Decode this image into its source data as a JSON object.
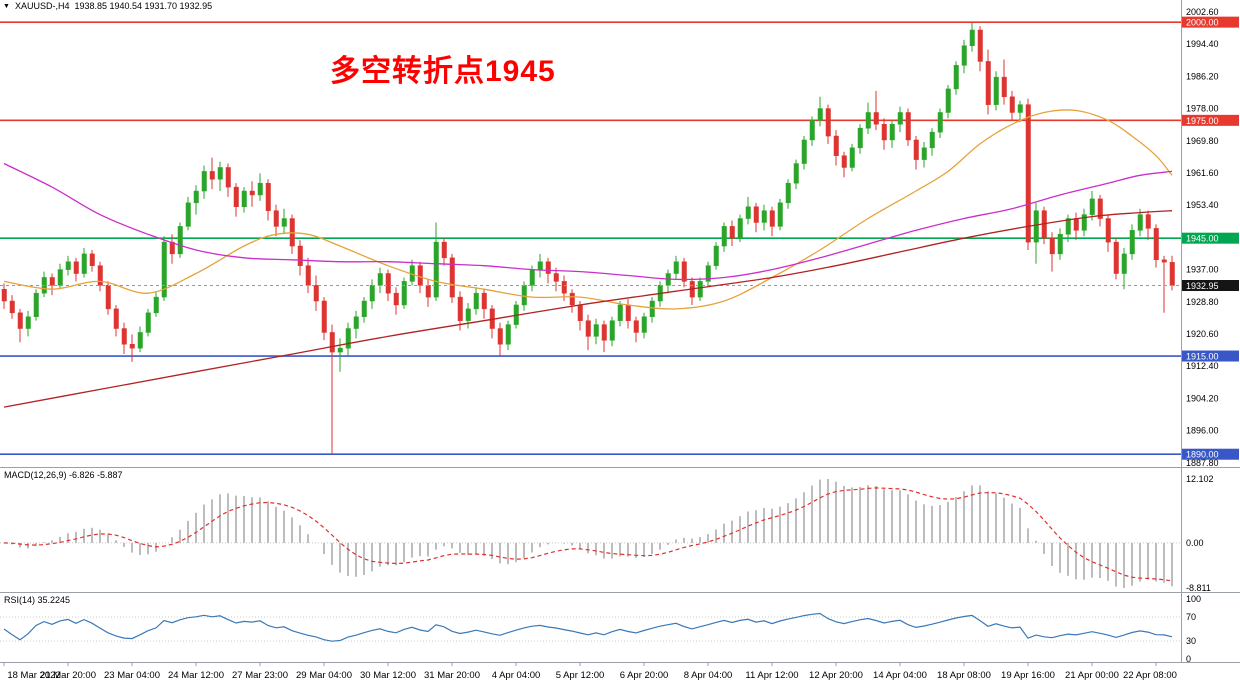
{
  "header": {
    "symbol_dropdown_icon": "▼",
    "symbol_period": "XAUUSD-,H4",
    "ohlc_text": "1938.85 1940.54 1931.70 1932.95",
    "open": 1938.85,
    "high": 1940.54,
    "low": 1931.7,
    "close": 1932.95
  },
  "annotation": {
    "text": "多空转折点1945",
    "color": "#ff0000"
  },
  "chart_data": {
    "type": "candlestick",
    "symbol": "XAUUSD-",
    "timeframe": "H4",
    "colors": {
      "bull": "#2aa52a",
      "bear": "#dc3430"
    },
    "y_ticks": [
      "2002.60",
      "1994.40",
      "1986.20",
      "1978.00",
      "1969.80",
      "1961.60",
      "1953.40",
      "1937.00",
      "1928.80",
      "1920.60",
      "1912.40",
      "1904.20",
      "1896.00",
      "1887.80"
    ],
    "hlines": [
      {
        "price": 2000.0,
        "label": "2000.00",
        "color": "#e8392f"
      },
      {
        "price": 1975.0,
        "label": "1975.00",
        "color": "#e8392f"
      },
      {
        "price": 1945.0,
        "label": "1945.00",
        "color": "#00a651"
      },
      {
        "price": 1915.0,
        "label": "1915.00",
        "color": "#3a57c8"
      },
      {
        "price": 1890.0,
        "label": "1890.00",
        "color": "#3a57c8"
      }
    ],
    "current_price": {
      "value": 1932.95,
      "label": "1932.95",
      "bg": "#151515"
    },
    "x_labels": [
      {
        "bar": 0,
        "text": "18 Mar 2022"
      },
      {
        "bar": 8,
        "text": "21 Mar 20:00"
      },
      {
        "bar": 16,
        "text": "23 Mar 04:00"
      },
      {
        "bar": 24,
        "text": "24 Mar 12:00"
      },
      {
        "bar": 32,
        "text": "27 Mar 23:00"
      },
      {
        "bar": 40,
        "text": "29 Mar 04:00"
      },
      {
        "bar": 48,
        "text": "30 Mar 12:00"
      },
      {
        "bar": 56,
        "text": "31 Mar 20:00"
      },
      {
        "bar": 64,
        "text": "4 Apr 04:00"
      },
      {
        "bar": 72,
        "text": "5 Apr 12:00"
      },
      {
        "bar": 80,
        "text": "6 Apr 20:00"
      },
      {
        "bar": 88,
        "text": "8 Apr 04:00"
      },
      {
        "bar": 96,
        "text": "11 Apr 12:00"
      },
      {
        "bar": 104,
        "text": "12 Apr 20:00"
      },
      {
        "bar": 112,
        "text": "14 Apr 04:00"
      },
      {
        "bar": 120,
        "text": "18 Apr 08:00"
      },
      {
        "bar": 128,
        "text": "19 Apr 16:00"
      },
      {
        "bar": 136,
        "text": "21 Apr 00:00"
      },
      {
        "bar": 144,
        "text": "22 Apr 08:00"
      }
    ],
    "candles": [
      [
        1932.0,
        1933.5,
        1927.0,
        1929.0
      ],
      [
        1929.0,
        1930.5,
        1924.5,
        1926.0
      ],
      [
        1926.0,
        1927.0,
        1918.5,
        1922.0
      ],
      [
        1922.0,
        1926.5,
        1920.0,
        1925.0
      ],
      [
        1925.0,
        1932.0,
        1924.0,
        1931.0
      ],
      [
        1931.0,
        1936.5,
        1930.0,
        1935.0
      ],
      [
        1935.0,
        1936.0,
        1930.5,
        1933.0
      ],
      [
        1933.0,
        1938.5,
        1932.0,
        1937.0
      ],
      [
        1937.0,
        1940.5,
        1935.5,
        1939.0
      ],
      [
        1939.0,
        1940.0,
        1934.0,
        1936.0
      ],
      [
        1936.0,
        1942.5,
        1935.0,
        1941.0
      ],
      [
        1941.0,
        1942.0,
        1936.5,
        1938.0
      ],
      [
        1938.0,
        1939.0,
        1931.5,
        1933.0
      ],
      [
        1933.0,
        1934.0,
        1925.5,
        1927.0
      ],
      [
        1927.0,
        1928.0,
        1920.0,
        1922.0
      ],
      [
        1922.0,
        1923.5,
        1915.5,
        1918.0
      ],
      [
        1918.0,
        1920.5,
        1913.5,
        1917.0
      ],
      [
        1917.0,
        1922.5,
        1916.0,
        1921.0
      ],
      [
        1921.0,
        1927.0,
        1920.0,
        1926.0
      ],
      [
        1926.0,
        1931.5,
        1925.0,
        1930.0
      ],
      [
        1930.0,
        1945.5,
        1929.0,
        1944.0
      ],
      [
        1944.0,
        1946.0,
        1938.5,
        1941.0
      ],
      [
        1941.0,
        1949.0,
        1940.0,
        1948.0
      ],
      [
        1948.0,
        1955.5,
        1947.0,
        1954.0
      ],
      [
        1954.0,
        1958.5,
        1951.0,
        1957.0
      ],
      [
        1957.0,
        1963.5,
        1955.0,
        1962.0
      ],
      [
        1962.0,
        1965.5,
        1957.5,
        1960.0
      ],
      [
        1960.0,
        1964.5,
        1957.0,
        1963.0
      ],
      [
        1963.0,
        1964.0,
        1955.5,
        1958.0
      ],
      [
        1958.0,
        1959.0,
        1950.5,
        1953.0
      ],
      [
        1953.0,
        1958.0,
        1951.5,
        1957.0
      ],
      [
        1957.0,
        1959.5,
        1953.0,
        1956.0
      ],
      [
        1956.0,
        1961.5,
        1954.5,
        1959.0
      ],
      [
        1959.0,
        1960.0,
        1949.5,
        1952.0
      ],
      [
        1952.0,
        1953.5,
        1945.5,
        1948.0
      ],
      [
        1948.0,
        1952.5,
        1946.0,
        1950.0
      ],
      [
        1950.0,
        1951.0,
        1941.0,
        1943.0
      ],
      [
        1943.0,
        1944.5,
        1935.5,
        1938.0
      ],
      [
        1938.0,
        1940.0,
        1931.0,
        1933.0
      ],
      [
        1933.0,
        1935.5,
        1926.5,
        1929.0
      ],
      [
        1929.0,
        1930.0,
        1919.0,
        1921.0
      ],
      [
        1921.0,
        1923.0,
        1890.0,
        1916.0
      ],
      [
        1916.0,
        1919.5,
        1911.0,
        1917.0
      ],
      [
        1917.0,
        1923.5,
        1915.0,
        1922.0
      ],
      [
        1922.0,
        1926.5,
        1919.5,
        1925.0
      ],
      [
        1925.0,
        1930.0,
        1923.5,
        1929.0
      ],
      [
        1929.0,
        1934.5,
        1927.0,
        1933.0
      ],
      [
        1933.0,
        1937.5,
        1931.0,
        1936.0
      ],
      [
        1936.0,
        1937.0,
        1929.0,
        1931.0
      ],
      [
        1931.0,
        1932.5,
        1925.5,
        1928.0
      ],
      [
        1928.0,
        1935.0,
        1927.0,
        1934.0
      ],
      [
        1934.0,
        1939.5,
        1933.0,
        1938.0
      ],
      [
        1938.0,
        1939.0,
        1931.0,
        1933.0
      ],
      [
        1933.0,
        1934.5,
        1927.5,
        1930.0
      ],
      [
        1930.0,
        1949.0,
        1929.0,
        1944.0
      ],
      [
        1944.0,
        1945.0,
        1938.0,
        1940.0
      ],
      [
        1940.0,
        1941.0,
        1928.5,
        1930.0
      ],
      [
        1930.0,
        1931.5,
        1921.5,
        1924.0
      ],
      [
        1924.0,
        1928.5,
        1922.0,
        1927.0
      ],
      [
        1927.0,
        1932.5,
        1925.5,
        1931.0
      ],
      [
        1931.0,
        1932.0,
        1924.5,
        1927.0
      ],
      [
        1927.0,
        1928.0,
        1919.5,
        1922.0
      ],
      [
        1922.0,
        1923.5,
        1915.0,
        1918.0
      ],
      [
        1918.0,
        1924.0,
        1916.5,
        1923.0
      ],
      [
        1923.0,
        1929.0,
        1922.0,
        1928.0
      ],
      [
        1928.0,
        1934.0,
        1926.5,
        1933.0
      ],
      [
        1933.0,
        1938.0,
        1931.5,
        1937.0
      ],
      [
        1937.0,
        1941.0,
        1935.0,
        1939.0
      ],
      [
        1939.0,
        1940.0,
        1933.5,
        1936.0
      ],
      [
        1936.0,
        1937.5,
        1931.5,
        1934.0
      ],
      [
        1934.0,
        1935.5,
        1929.0,
        1931.0
      ],
      [
        1931.0,
        1932.0,
        1926.0,
        1928.0
      ],
      [
        1928.0,
        1929.0,
        1921.5,
        1924.0
      ],
      [
        1924.0,
        1925.5,
        1916.5,
        1920.0
      ],
      [
        1920.0,
        1924.5,
        1918.0,
        1923.0
      ],
      [
        1923.0,
        1924.0,
        1916.0,
        1919.0
      ],
      [
        1919.0,
        1925.0,
        1917.5,
        1924.0
      ],
      [
        1924.0,
        1929.0,
        1922.5,
        1928.0
      ],
      [
        1928.0,
        1929.5,
        1922.0,
        1924.0
      ],
      [
        1924.0,
        1925.0,
        1918.5,
        1921.0
      ],
      [
        1921.0,
        1926.0,
        1919.5,
        1925.0
      ],
      [
        1925.0,
        1930.0,
        1923.5,
        1929.0
      ],
      [
        1929.0,
        1934.0,
        1927.5,
        1933.0
      ],
      [
        1933.0,
        1937.0,
        1931.0,
        1936.0
      ],
      [
        1936.0,
        1940.5,
        1934.5,
        1939.0
      ],
      [
        1939.0,
        1940.0,
        1932.5,
        1934.0
      ],
      [
        1934.0,
        1935.0,
        1928.0,
        1930.0
      ],
      [
        1930.0,
        1935.0,
        1929.0,
        1934.0
      ],
      [
        1934.0,
        1939.0,
        1932.5,
        1938.0
      ],
      [
        1938.0,
        1944.0,
        1937.0,
        1943.0
      ],
      [
        1943.0,
        1949.0,
        1941.5,
        1948.0
      ],
      [
        1948.0,
        1949.5,
        1943.0,
        1945.0
      ],
      [
        1945.0,
        1951.0,
        1944.0,
        1950.0
      ],
      [
        1950.0,
        1955.5,
        1948.5,
        1953.0
      ],
      [
        1953.0,
        1954.0,
        1946.5,
        1949.0
      ],
      [
        1949.0,
        1953.5,
        1947.0,
        1952.0
      ],
      [
        1952.0,
        1953.0,
        1945.5,
        1948.0
      ],
      [
        1948.0,
        1955.0,
        1947.0,
        1954.0
      ],
      [
        1954.0,
        1960.0,
        1952.5,
        1959.0
      ],
      [
        1959.0,
        1965.0,
        1957.5,
        1964.0
      ],
      [
        1964.0,
        1971.0,
        1962.5,
        1970.0
      ],
      [
        1970.0,
        1976.0,
        1968.5,
        1975.0
      ],
      [
        1975.0,
        1981.0,
        1973.5,
        1978.0
      ],
      [
        1978.0,
        1979.0,
        1969.0,
        1971.0
      ],
      [
        1971.0,
        1972.5,
        1963.5,
        1966.0
      ],
      [
        1966.0,
        1967.0,
        1960.5,
        1963.0
      ],
      [
        1963.0,
        1969.0,
        1962.0,
        1968.0
      ],
      [
        1968.0,
        1974.0,
        1966.5,
        1973.0
      ],
      [
        1973.0,
        1979.5,
        1971.5,
        1977.0
      ],
      [
        1977.0,
        1982.5,
        1972.5,
        1974.0
      ],
      [
        1974.0,
        1975.5,
        1967.5,
        1970.0
      ],
      [
        1970.0,
        1975.0,
        1968.0,
        1974.0
      ],
      [
        1974.0,
        1978.5,
        1972.0,
        1977.0
      ],
      [
        1977.0,
        1978.0,
        1968.5,
        1970.0
      ],
      [
        1970.0,
        1971.0,
        1962.5,
        1965.0
      ],
      [
        1965.0,
        1969.5,
        1963.0,
        1968.0
      ],
      [
        1968.0,
        1973.0,
        1966.0,
        1972.0
      ],
      [
        1972.0,
        1978.0,
        1970.5,
        1977.0
      ],
      [
        1977.0,
        1984.0,
        1975.5,
        1983.0
      ],
      [
        1983.0,
        1990.0,
        1981.5,
        1989.0
      ],
      [
        1989.0,
        1995.5,
        1987.0,
        1994.0
      ],
      [
        1994.0,
        1999.8,
        1992.5,
        1998.0
      ],
      [
        1998.0,
        1999.0,
        1987.5,
        1990.0
      ],
      [
        1990.0,
        1993.0,
        1976.5,
        1979.0
      ],
      [
        1979.0,
        1987.5,
        1977.5,
        1986.0
      ],
      [
        1986.0,
        1990.5,
        1979.0,
        1981.0
      ],
      [
        1981.0,
        1982.5,
        1975.0,
        1977.0
      ],
      [
        1977.0,
        1980.0,
        1974.5,
        1979.0
      ],
      [
        1979.0,
        1980.5,
        1942.0,
        1944.0
      ],
      [
        1944.0,
        1954.0,
        1938.5,
        1952.0
      ],
      [
        1952.0,
        1953.0,
        1943.5,
        1945.0
      ],
      [
        1945.0,
        1946.5,
        1936.5,
        1941.0
      ],
      [
        1941.0,
        1947.5,
        1939.5,
        1946.0
      ],
      [
        1946.0,
        1951.0,
        1944.0,
        1950.0
      ],
      [
        1950.0,
        1951.5,
        1944.5,
        1947.0
      ],
      [
        1947.0,
        1952.5,
        1945.5,
        1951.0
      ],
      [
        1951.0,
        1957.0,
        1949.5,
        1955.0
      ],
      [
        1955.0,
        1956.0,
        1948.0,
        1950.0
      ],
      [
        1950.0,
        1951.0,
        1941.5,
        1944.0
      ],
      [
        1944.0,
        1945.0,
        1934.5,
        1936.0
      ],
      [
        1936.0,
        1942.5,
        1932.0,
        1941.0
      ],
      [
        1941.0,
        1948.5,
        1939.5,
        1947.0
      ],
      [
        1947.0,
        1952.5,
        1945.5,
        1951.0
      ],
      [
        1951.0,
        1952.0,
        1944.5,
        1947.5
      ],
      [
        1947.5,
        1948.5,
        1937.5,
        1939.5
      ],
      [
        1939.5,
        1940.5,
        1926.0,
        1938.9
      ],
      [
        1938.85,
        1940.54,
        1931.7,
        1932.95
      ]
    ],
    "moving_averages": [
      {
        "name": "ma-orange-line",
        "color": "#e6a23c",
        "points": [
          [
            0,
            1934
          ],
          [
            6,
            1932
          ],
          [
            12,
            1934
          ],
          [
            18,
            1931
          ],
          [
            24,
            1936
          ],
          [
            30,
            1943
          ],
          [
            34,
            1946
          ],
          [
            38,
            1946
          ],
          [
            42,
            1943
          ],
          [
            48,
            1938
          ],
          [
            54,
            1934
          ],
          [
            60,
            1932
          ],
          [
            66,
            1930
          ],
          [
            72,
            1930
          ],
          [
            78,
            1928
          ],
          [
            84,
            1927
          ],
          [
            90,
            1929
          ],
          [
            96,
            1935
          ],
          [
            102,
            1942
          ],
          [
            108,
            1950
          ],
          [
            114,
            1957
          ],
          [
            118,
            1962
          ],
          [
            122,
            1969
          ],
          [
            126,
            1974
          ],
          [
            130,
            1977
          ],
          [
            134,
            1977.5
          ],
          [
            138,
            1975
          ],
          [
            141,
            1971
          ],
          [
            144,
            1966
          ],
          [
            146,
            1961
          ]
        ]
      },
      {
        "name": "ma-magenta-line",
        "color": "#cb2ecb",
        "points": [
          [
            0,
            1964
          ],
          [
            6,
            1958
          ],
          [
            12,
            1951
          ],
          [
            18,
            1946
          ],
          [
            24,
            1942
          ],
          [
            30,
            1940
          ],
          [
            36,
            1939.5
          ],
          [
            42,
            1939
          ],
          [
            48,
            1939
          ],
          [
            54,
            1938.5
          ],
          [
            60,
            1938
          ],
          [
            66,
            1937
          ],
          [
            72,
            1936.5
          ],
          [
            78,
            1935.5
          ],
          [
            84,
            1934.5
          ],
          [
            90,
            1935
          ],
          [
            96,
            1937
          ],
          [
            102,
            1940
          ],
          [
            108,
            1943.5
          ],
          [
            114,
            1947
          ],
          [
            120,
            1950
          ],
          [
            126,
            1952.5
          ],
          [
            132,
            1956
          ],
          [
            138,
            1959
          ],
          [
            142,
            1961
          ],
          [
            146,
            1962
          ]
        ]
      },
      {
        "name": "ma-darkred-line",
        "color": "#b22222",
        "points": [
          [
            0,
            1902
          ],
          [
            12,
            1906.5
          ],
          [
            24,
            1911
          ],
          [
            36,
            1915.5
          ],
          [
            48,
            1920
          ],
          [
            60,
            1924
          ],
          [
            72,
            1928
          ],
          [
            84,
            1931.5
          ],
          [
            96,
            1935
          ],
          [
            104,
            1938
          ],
          [
            112,
            1941.5
          ],
          [
            120,
            1945
          ],
          [
            128,
            1948
          ],
          [
            136,
            1950.5
          ],
          [
            142,
            1951.5
          ],
          [
            146,
            1952
          ]
        ]
      }
    ],
    "macd": {
      "label": "MACD(12,26,9) -6.826 -5.887",
      "fast": 12,
      "slow": 26,
      "signal_period": 9,
      "current_macd": -6.826,
      "current_signal": -5.887,
      "axis_labels": [
        "12.102",
        "0.00",
        "-8.811"
      ],
      "histogram_color": "#bdbdbd",
      "signal_color": "#e03030"
    },
    "rsi": {
      "label": "RSI(14) 35.2245",
      "period": 14,
      "current_value": 35.2245,
      "axis_labels": [
        "100",
        "70",
        "30",
        "0"
      ],
      "levels": [
        70,
        30
      ],
      "line_color": "#3a79b8"
    }
  }
}
